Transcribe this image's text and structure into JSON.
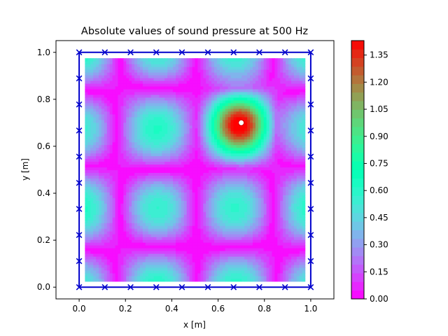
{
  "chart_data": {
    "type": "heatmap",
    "title": "Absolute values of sound pressure at 500 Hz",
    "xlabel": "x [m]",
    "ylabel": "y [m]",
    "xlim": [
      -0.1,
      1.1
    ],
    "ylim": [
      -0.05,
      1.05
    ],
    "x_ticks": [
      "0.0",
      "0.2",
      "0.4",
      "0.6",
      "0.8",
      "1.0"
    ],
    "y_ticks": [
      "0.0",
      "0.2",
      "0.4",
      "0.6",
      "0.8",
      "1.0"
    ],
    "field_extent": {
      "x": [
        0.025,
        0.975
      ],
      "y": [
        0.025,
        0.975
      ]
    },
    "grid": false,
    "colormap": "rainbow",
    "colorbar": {
      "range": [
        0.0,
        1.43
      ],
      "ticks": [
        "0.00",
        "0.15",
        "0.30",
        "0.45",
        "0.60",
        "0.75",
        "0.90",
        "1.05",
        "1.20",
        "1.35"
      ]
    },
    "source": {
      "x": 0.7,
      "y": 0.7
    },
    "boundary_markers": [
      [
        0,
        0
      ],
      [
        0.111,
        0
      ],
      [
        0.222,
        0
      ],
      [
        0.333,
        0
      ],
      [
        0.444,
        0
      ],
      [
        0.556,
        0
      ],
      [
        0.667,
        0
      ],
      [
        0.778,
        0
      ],
      [
        0.889,
        0
      ],
      [
        1,
        0
      ],
      [
        0,
        1
      ],
      [
        0.111,
        1
      ],
      [
        0.222,
        1
      ],
      [
        0.333,
        1
      ],
      [
        0.444,
        1
      ],
      [
        0.556,
        1
      ],
      [
        0.667,
        1
      ],
      [
        0.778,
        1
      ],
      [
        0.889,
        1
      ],
      [
        1,
        1
      ],
      [
        0,
        0.111
      ],
      [
        0,
        0.222
      ],
      [
        0,
        0.333
      ],
      [
        0,
        0.444
      ],
      [
        0,
        0.556
      ],
      [
        0,
        0.667
      ],
      [
        0,
        0.778
      ],
      [
        0,
        0.889
      ],
      [
        1,
        0.111
      ],
      [
        1,
        0.222
      ],
      [
        1,
        0.333
      ],
      [
        1,
        0.444
      ],
      [
        1,
        0.556
      ],
      [
        1,
        0.667
      ],
      [
        1,
        0.778
      ],
      [
        1,
        0.889
      ]
    ],
    "colors": {
      "boundary": "#0000cc",
      "marker": "#0000cc",
      "source_fill": "#ffffff",
      "source_stroke": "#cc0000"
    }
  }
}
